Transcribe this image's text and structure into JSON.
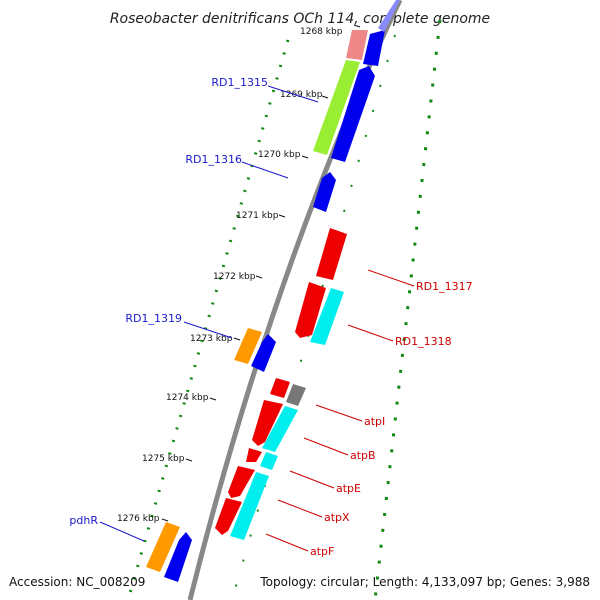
{
  "title": "Roseobacter denitrificans OCh 114, complete genome",
  "accession": "Accession: NC_008209",
  "summary": "Topology: circular; Length: 4,133,097 bp; Genes: 3,988",
  "ticks": [
    "1268 kbp",
    "1269 kbp",
    "1270 kbp",
    "1271 kbp",
    "1272 kbp",
    "1273 kbp",
    "1274 kbp",
    "1275 kbp",
    "1276 kbp"
  ],
  "genes": [
    {
      "id": "RD1_1315",
      "strand": "forward"
    },
    {
      "id": "RD1_1316",
      "strand": "forward"
    },
    {
      "id": "RD1_1317",
      "strand": "reverse"
    },
    {
      "id": "RD1_1318",
      "strand": "reverse"
    },
    {
      "id": "RD1_1319",
      "strand": "forward"
    },
    {
      "id": "atpI",
      "strand": "reverse"
    },
    {
      "id": "atpB",
      "strand": "reverse"
    },
    {
      "id": "atpE",
      "strand": "reverse"
    },
    {
      "id": "atpX",
      "strand": "reverse"
    },
    {
      "id": "atpF",
      "strand": "reverse"
    },
    {
      "id": "pdhR",
      "strand": "forward"
    }
  ],
  "colors": {
    "forward_label": "#1a1acc",
    "reverse_label": "#cc0000",
    "cds": "#0000ee",
    "reverse_cds": "#ee0000",
    "backbone": "#888888",
    "gc_dots": "#118811",
    "cog_orange": "#ff9900",
    "cog_green": "#99ee33",
    "cog_cyan": "#00eeee",
    "cog_pink": "#ee8888",
    "cog_gray": "#777777"
  }
}
